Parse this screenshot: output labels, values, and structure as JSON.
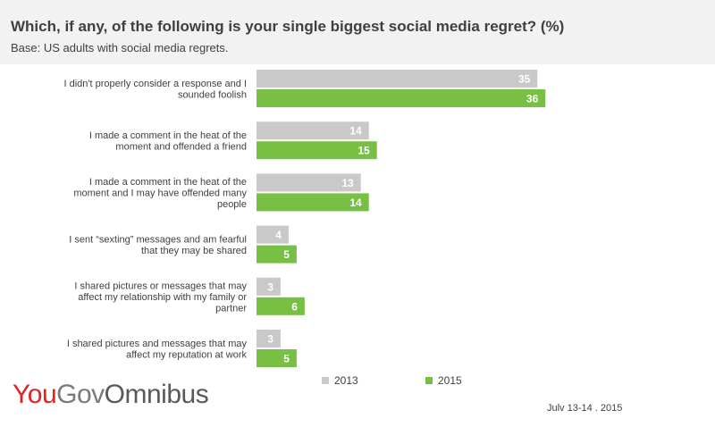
{
  "header": {
    "title": "Which, if any, of the following is your single biggest social media regret? (%)",
    "subtitle": "Base: US adults with social media regrets."
  },
  "chart_data": {
    "type": "bar",
    "orientation": "horizontal",
    "title": "Which, if any, of the following is your single biggest social media regret? (%)",
    "subtitle": "Base: US adults with social media regrets.",
    "categories": [
      [
        "I didn't properly consider a response and I",
        "sounded foolish"
      ],
      [
        "I made a comment in the heat of the",
        "moment and offended a friend"
      ],
      [
        "I made a comment in the heat of the",
        "moment and I may have offended many",
        "people"
      ],
      [
        "I sent “sexting” messages and am fearful",
        "that they may be shared"
      ],
      [
        "I shared pictures or messages that may",
        "affect my relationship with my family or",
        "partner"
      ],
      [
        "I shared pictures and messages that may",
        "affect my reputation at work"
      ]
    ],
    "series": [
      {
        "name": "2013",
        "color": "#c9c9c9",
        "values": [
          35,
          14,
          13,
          4,
          3,
          3
        ]
      },
      {
        "name": "2015",
        "color": "#78c043",
        "values": [
          36,
          15,
          14,
          5,
          6,
          5
        ]
      }
    ],
    "xlim": [
      0,
      40
    ],
    "grid": false,
    "legend_position": "bottom",
    "data_labels": true
  },
  "legend": {
    "items": [
      {
        "label": "2013",
        "color": "#c9c9c9"
      },
      {
        "label": "2015",
        "color": "#78c043"
      }
    ]
  },
  "footer": {
    "logo": {
      "you": "You",
      "gov": "Gov",
      "omnibus": "Omnibus"
    },
    "date": "Julv 13-14 . 2015"
  }
}
